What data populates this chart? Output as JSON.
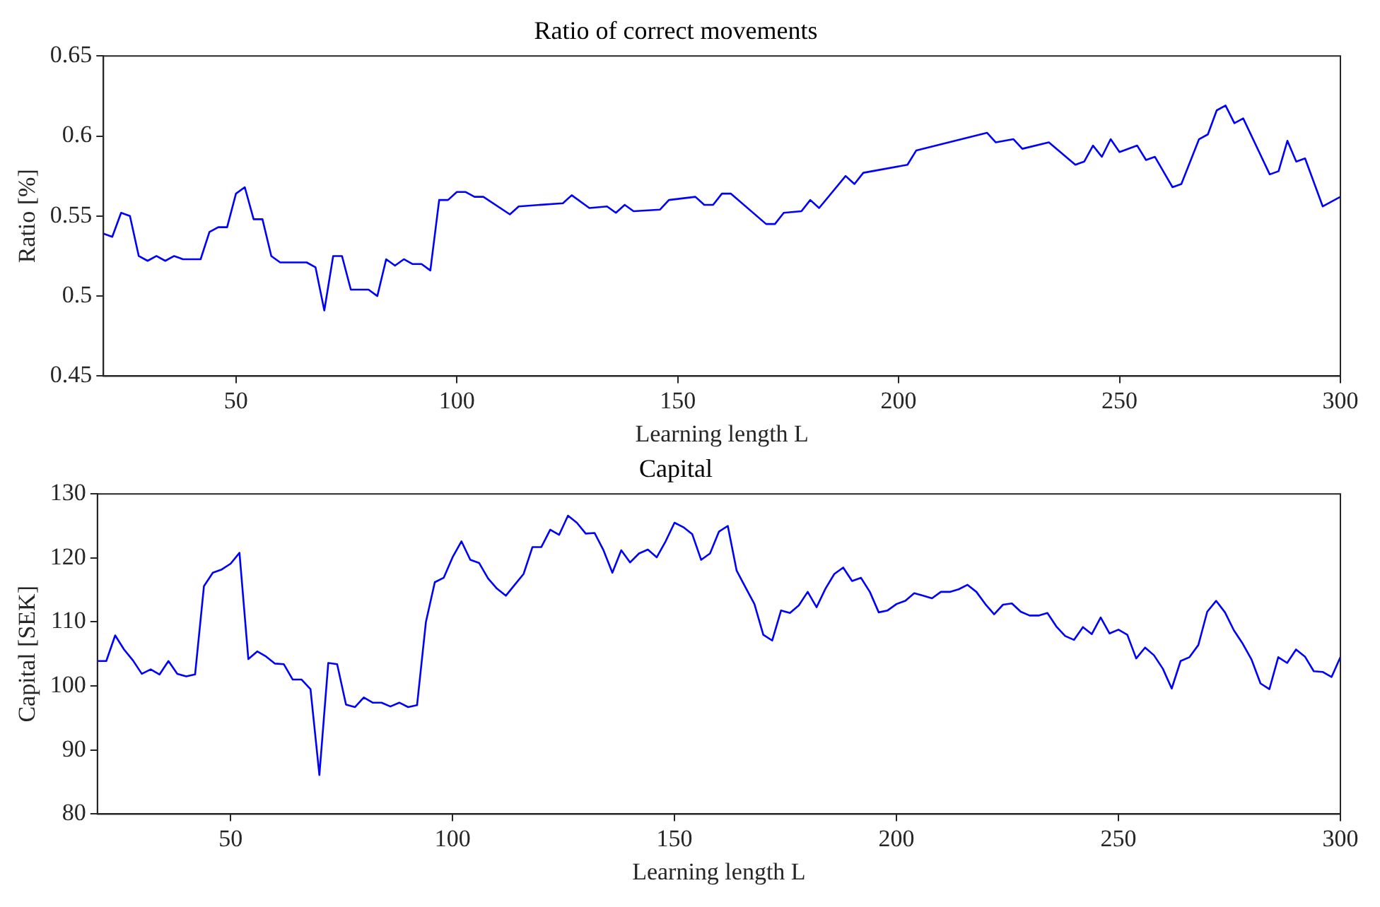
{
  "chart_data": [
    {
      "type": "line",
      "title": "Ratio of correct movements",
      "xlabel": "Learning length L",
      "ylabel": "Ratio [%]",
      "xlim": [
        20,
        300
      ],
      "xticks": [
        50,
        100,
        150,
        200,
        250,
        300
      ],
      "ylim": [
        0.45,
        0.65
      ],
      "yticks": [
        0.45,
        0.5,
        0.55,
        0.6,
        0.65
      ],
      "grid": false,
      "legend": false,
      "marker": "none",
      "line_style": "solid",
      "series": [
        {
          "color": "#0000ff",
          "x": [
            20,
            22,
            24,
            26,
            28,
            30,
            32,
            34,
            36,
            38,
            42,
            44,
            46,
            48,
            50,
            52,
            54,
            56,
            58,
            60,
            66,
            68,
            70,
            72,
            74,
            76,
            80,
            82,
            84,
            86,
            88,
            90,
            92,
            94,
            96,
            98,
            100,
            102,
            104,
            106,
            112,
            114,
            124,
            126,
            130,
            134,
            136,
            138,
            140,
            146,
            148,
            154,
            156,
            158,
            160,
            162,
            170,
            172,
            174,
            178,
            180,
            182,
            188,
            190,
            192,
            202,
            204,
            220,
            222,
            226,
            228,
            234,
            240,
            242,
            244,
            246,
            248,
            250,
            254,
            256,
            258,
            262,
            264,
            268,
            270,
            272,
            274,
            276,
            278,
            284,
            286,
            288,
            290,
            292,
            296,
            300
          ],
          "values": [
            0.539,
            0.537,
            0.552,
            0.55,
            0.525,
            0.522,
            0.525,
            0.522,
            0.525,
            0.523,
            0.523,
            0.54,
            0.543,
            0.543,
            0.564,
            0.568,
            0.548,
            0.548,
            0.525,
            0.521,
            0.521,
            0.518,
            0.491,
            0.525,
            0.525,
            0.504,
            0.504,
            0.5,
            0.523,
            0.519,
            0.523,
            0.52,
            0.52,
            0.516,
            0.56,
            0.56,
            0.565,
            0.565,
            0.562,
            0.562,
            0.551,
            0.556,
            0.558,
            0.563,
            0.555,
            0.556,
            0.552,
            0.557,
            0.553,
            0.554,
            0.56,
            0.562,
            0.557,
            0.557,
            0.564,
            0.564,
            0.545,
            0.545,
            0.552,
            0.553,
            0.56,
            0.555,
            0.575,
            0.57,
            0.577,
            0.582,
            0.591,
            0.602,
            0.596,
            0.598,
            0.592,
            0.596,
            0.582,
            0.584,
            0.594,
            0.587,
            0.598,
            0.59,
            0.594,
            0.585,
            0.587,
            0.568,
            0.57,
            0.598,
            0.601,
            0.616,
            0.619,
            0.608,
            0.611,
            0.576,
            0.578,
            0.597,
            0.584,
            0.586,
            0.556,
            0.562
          ]
        }
      ]
    },
    {
      "type": "line",
      "title": "Capital",
      "xlabel": "Learning length L",
      "ylabel": "Capital [SEK]",
      "xlim": [
        20,
        300
      ],
      "xticks": [
        50,
        100,
        150,
        200,
        250,
        300
      ],
      "ylim": [
        80,
        130
      ],
      "yticks": [
        80,
        90,
        100,
        110,
        120,
        130
      ],
      "grid": false,
      "legend": false,
      "marker": "none",
      "line_style": "solid",
      "series": [
        {
          "color": "#0000ff",
          "x": [
            20,
            22,
            24,
            26,
            28,
            30,
            32,
            34,
            36,
            38,
            40,
            42,
            44,
            46,
            48,
            50,
            52,
            54,
            56,
            58,
            60,
            62,
            64,
            66,
            68,
            70,
            72,
            74,
            76,
            78,
            80,
            82,
            84,
            86,
            88,
            90,
            92,
            94,
            96,
            98,
            100,
            102,
            104,
            106,
            108,
            110,
            112,
            114,
            116,
            118,
            120,
            122,
            124,
            126,
            128,
            130,
            132,
            134,
            136,
            138,
            140,
            142,
            144,
            146,
            148,
            150,
            152,
            154,
            156,
            158,
            160,
            162,
            164,
            166,
            168,
            170,
            172,
            174,
            176,
            178,
            180,
            182,
            184,
            186,
            188,
            190,
            192,
            194,
            196,
            198,
            200,
            202,
            204,
            206,
            208,
            210,
            212,
            214,
            216,
            218,
            220,
            222,
            224,
            226,
            228,
            230,
            232,
            234,
            236,
            238,
            240,
            242,
            244,
            246,
            248,
            250,
            252,
            254,
            256,
            258,
            260,
            262,
            264,
            266,
            268,
            270,
            272,
            274,
            276,
            278,
            280,
            282,
            284,
            286,
            288,
            290,
            292,
            294,
            296,
            298,
            300
          ],
          "values": [
            103.9,
            103.9,
            107.9,
            105.7,
            104.0,
            101.9,
            102.6,
            101.8,
            103.9,
            101.9,
            101.5,
            101.8,
            115.6,
            117.7,
            118.2,
            119.1,
            120.8,
            104.2,
            105.4,
            104.6,
            103.5,
            103.4,
            101.0,
            101.0,
            99.5,
            86.1,
            103.6,
            103.4,
            97.1,
            96.7,
            98.2,
            97.4,
            97.4,
            96.8,
            97.4,
            96.7,
            97.0,
            110.0,
            116.2,
            116.9,
            120.1,
            122.6,
            119.7,
            119.2,
            116.8,
            115.2,
            114.1,
            115.8,
            117.5,
            121.7,
            121.7,
            124.4,
            123.6,
            126.6,
            125.5,
            123.8,
            123.9,
            121.2,
            117.7,
            121.2,
            119.3,
            120.7,
            121.3,
            120.1,
            122.6,
            125.5,
            124.8,
            123.7,
            119.7,
            120.7,
            124.1,
            125.0,
            118.0,
            115.4,
            112.8,
            108.0,
            107.1,
            111.8,
            111.4,
            112.6,
            114.7,
            112.3,
            115.2,
            117.5,
            118.5,
            116.4,
            116.9,
            114.7,
            111.5,
            111.8,
            112.8,
            113.3,
            114.5,
            114.1,
            113.7,
            114.7,
            114.7,
            115.1,
            115.8,
            114.7,
            112.8,
            111.2,
            112.7,
            112.9,
            111.6,
            111.0,
            111.0,
            111.4,
            109.3,
            107.8,
            107.2,
            109.2,
            108.1,
            110.7,
            108.2,
            108.8,
            108.0,
            104.3,
            106.0,
            104.8,
            102.7,
            99.6,
            103.9,
            104.5,
            106.4,
            111.6,
            113.3,
            111.5,
            108.7,
            106.6,
            104.1,
            100.4,
            99.5,
            104.5,
            103.6,
            105.7,
            104.6,
            102.3,
            102.2,
            101.4,
            104.5
          ]
        }
      ]
    }
  ]
}
